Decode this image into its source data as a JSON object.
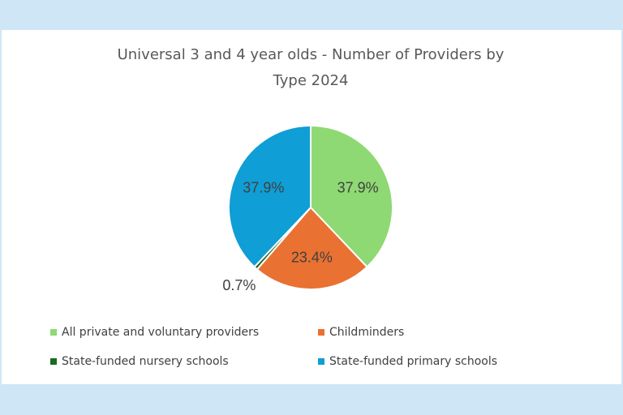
{
  "chart_data": {
    "type": "pie",
    "title": [
      "Universal 3 and 4 year olds - Number of Providers by",
      "Type 2024"
    ],
    "categories": [
      "All private and voluntary providers",
      "Childminders",
      "State-funded nursery schools",
      "State-funded primary schools"
    ],
    "values": [
      37.9,
      23.4,
      0.7,
      37.9
    ],
    "value_labels": [
      "37.9%",
      "23.4%",
      "0.7%",
      "37.9%"
    ],
    "colors": [
      "#8ed973",
      "#e97132",
      "#196b24",
      "#0f9ed5"
    ]
  }
}
